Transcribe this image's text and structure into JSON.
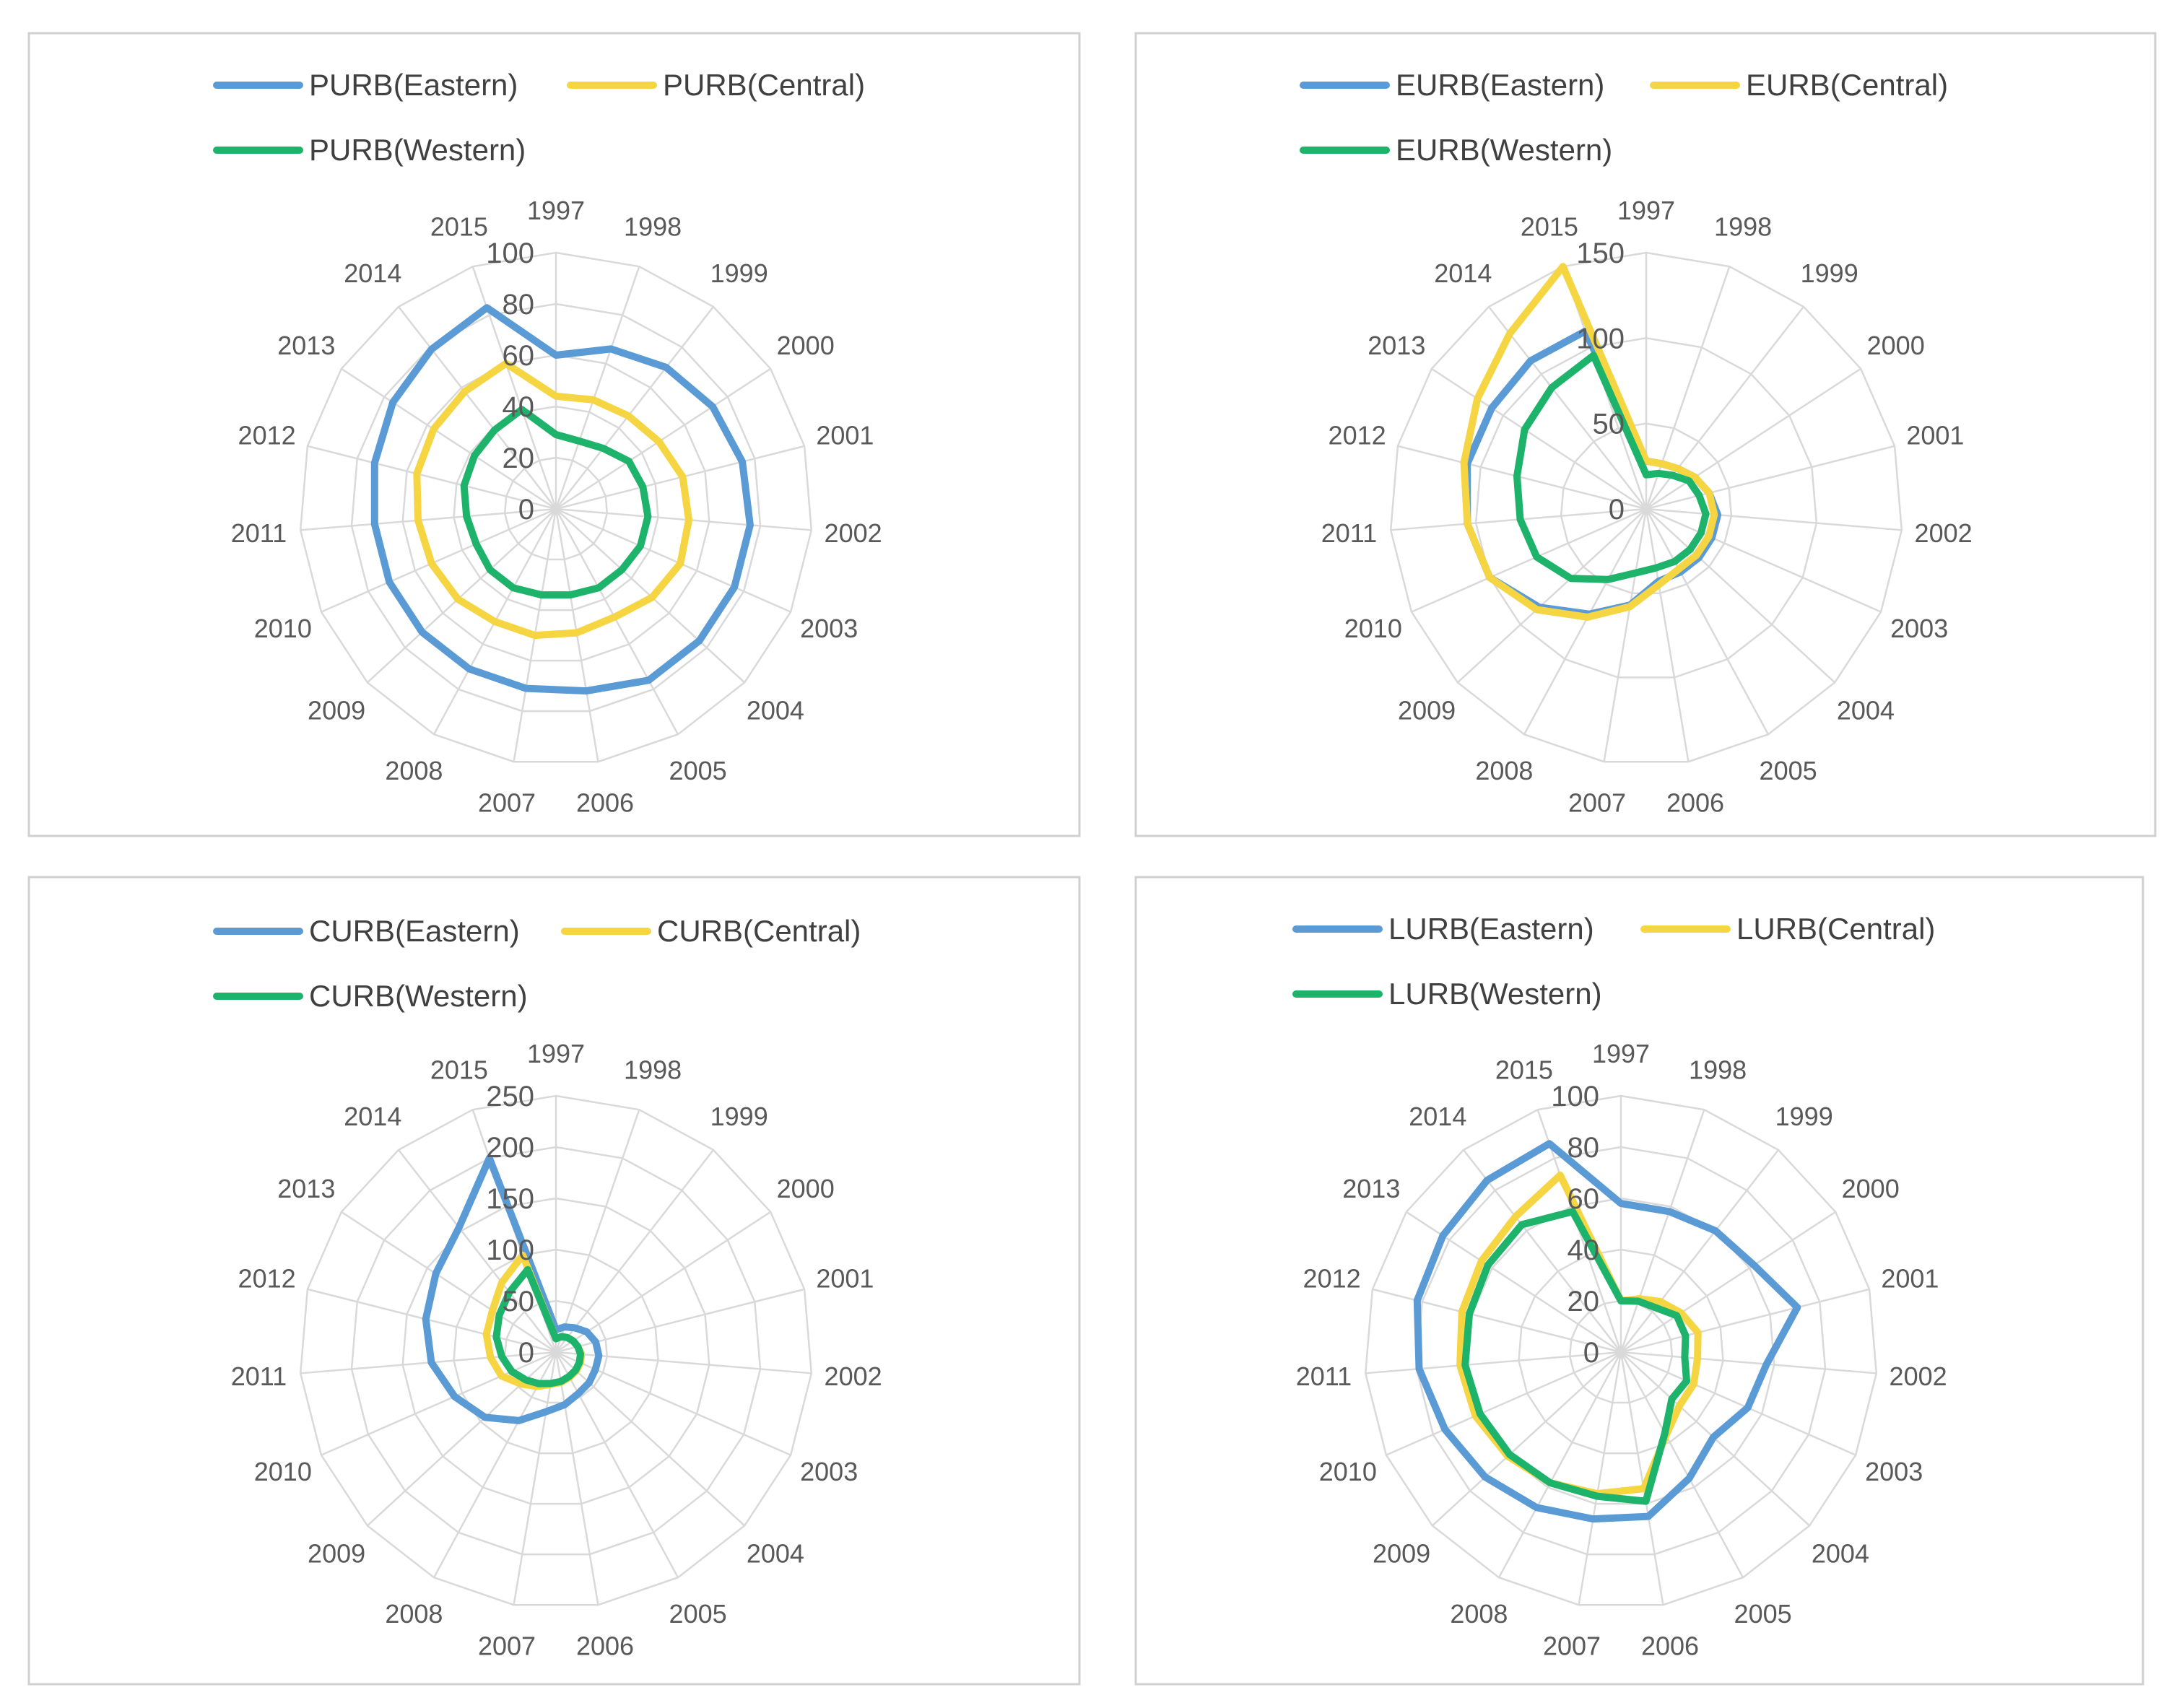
{
  "colors": {
    "eastern": "#5b9bd5",
    "central": "#f5d542",
    "western": "#1db36a"
  },
  "chart_data": [
    {
      "type": "radar",
      "categories": [
        "1997",
        "1998",
        "1999",
        "2000",
        "2001",
        "2002",
        "2003",
        "2004",
        "2005",
        "2006",
        "2007",
        "2008",
        "2009",
        "2010",
        "2011",
        "2012",
        "2013",
        "2014",
        "2015"
      ],
      "ticks": [
        "0",
        "20",
        "40",
        "60",
        "80",
        "100"
      ],
      "rmax": 100,
      "series": [
        {
          "name": "PURB(Eastern)",
          "key": "eastern",
          "values": [
            60,
            66,
            70,
            73,
            75,
            76,
            76,
            76,
            76,
            72,
            71,
            71,
            71,
            71,
            71,
            73,
            76,
            79,
            83
          ]
        },
        {
          "name": "PURB(Central)",
          "key": "central",
          "values": [
            44,
            45,
            46,
            48,
            51,
            52,
            53,
            51,
            48,
            49,
            50,
            50,
            52,
            53,
            54,
            56,
            57,
            58,
            60
          ]
        },
        {
          "name": "PURB(Western)",
          "key": "western",
          "values": [
            29,
            28,
            30,
            34,
            35,
            36,
            36,
            35,
            35,
            34,
            34,
            35,
            35,
            34,
            35,
            37,
            38,
            39,
            41
          ]
        }
      ]
    },
    {
      "type": "radar",
      "categories": [
        "1997",
        "1998",
        "1999",
        "2000",
        "2001",
        "2002",
        "2003",
        "2004",
        "2005",
        "2006",
        "2007",
        "2008",
        "2009",
        "2010",
        "2011",
        "2012",
        "2013",
        "2014",
        "2015"
      ],
      "ticks": [
        "0",
        "50",
        "100",
        "150"
      ],
      "rmax": 150,
      "series": [
        {
          "name": "EURB(Eastern)",
          "key": "eastern",
          "values": [
            28,
            28,
            30,
            34,
            38,
            42,
            42,
            42,
            42,
            43,
            57,
            70,
            85,
            100,
            105,
            108,
            108,
            110,
            110
          ]
        },
        {
          "name": "EURB(Central)",
          "key": "central",
          "values": [
            28,
            28,
            30,
            34,
            38,
            40,
            40,
            40,
            40,
            45,
            58,
            72,
            87,
            100,
            105,
            110,
            118,
            130,
            150
          ]
        },
        {
          "name": "EURB(Western)",
          "key": "western",
          "values": [
            20,
            22,
            25,
            30,
            32,
            35,
            35,
            35,
            35,
            35,
            38,
            47,
            60,
            70,
            74,
            78,
            85,
            90,
            95
          ]
        }
      ]
    },
    {
      "type": "radar",
      "categories": [
        "1997",
        "1998",
        "1999",
        "2000",
        "2001",
        "2002",
        "2003",
        "2004",
        "2005",
        "2006",
        "2007",
        "2008",
        "2009",
        "2010",
        "2011",
        "2012",
        "2013",
        "2014",
        "2015"
      ],
      "ticks": [
        "0",
        "50",
        "100",
        "150",
        "200",
        "250"
      ],
      "rmax": 250,
      "series": [
        {
          "name": "CURB(Eastern)",
          "key": "eastern",
          "values": [
            22,
            26,
            30,
            36,
            40,
            42,
            42,
            44,
            46,
            52,
            59,
            76,
            94,
            108,
            122,
            131,
            140,
            154,
            200
          ]
        },
        {
          "name": "CURB(Central)",
          "key": "central",
          "values": [
            13,
            16,
            18,
            20,
            22,
            25,
            26,
            27,
            28,
            30,
            32,
            38,
            46,
            58,
            64,
            70,
            74,
            86,
            100
          ]
        },
        {
          "name": "CURB(Western)",
          "key": "western",
          "values": [
            13,
            16,
            18,
            20,
            22,
            24,
            25,
            26,
            27,
            29,
            31,
            35,
            40,
            47,
            53,
            60,
            66,
            74,
            85
          ]
        }
      ]
    },
    {
      "type": "radar",
      "categories": [
        "1997",
        "1998",
        "1999",
        "2000",
        "2001",
        "2002",
        "2003",
        "2004",
        "2005",
        "2006",
        "2007",
        "2008",
        "2009",
        "2010",
        "2011",
        "2012",
        "2013",
        "2014",
        "2015"
      ],
      "ticks": [
        "0",
        "20",
        "40",
        "60",
        "80",
        "100"
      ],
      "rmax": 100,
      "series": [
        {
          "name": "LURB(Eastern)",
          "key": "eastern",
          "values": [
            58,
            58,
            60,
            62,
            71,
            57,
            54,
            49,
            56,
            65,
            66,
            69,
            72,
            75,
            79,
            82,
            83,
            85,
            86
          ]
        },
        {
          "name": "LURB(Central)",
          "key": "central",
          "values": [
            20,
            22,
            25,
            28,
            31,
            30,
            31,
            31,
            37,
            54,
            56,
            58,
            60,
            62,
            63,
            64,
            65,
            67,
            73
          ]
        },
        {
          "name": "LURB(Western)",
          "key": "western",
          "values": [
            20,
            21,
            22,
            26,
            26,
            25,
            28,
            27,
            36,
            59,
            57,
            58,
            59,
            60,
            61,
            61,
            62,
            63,
            58
          ]
        }
      ]
    }
  ]
}
